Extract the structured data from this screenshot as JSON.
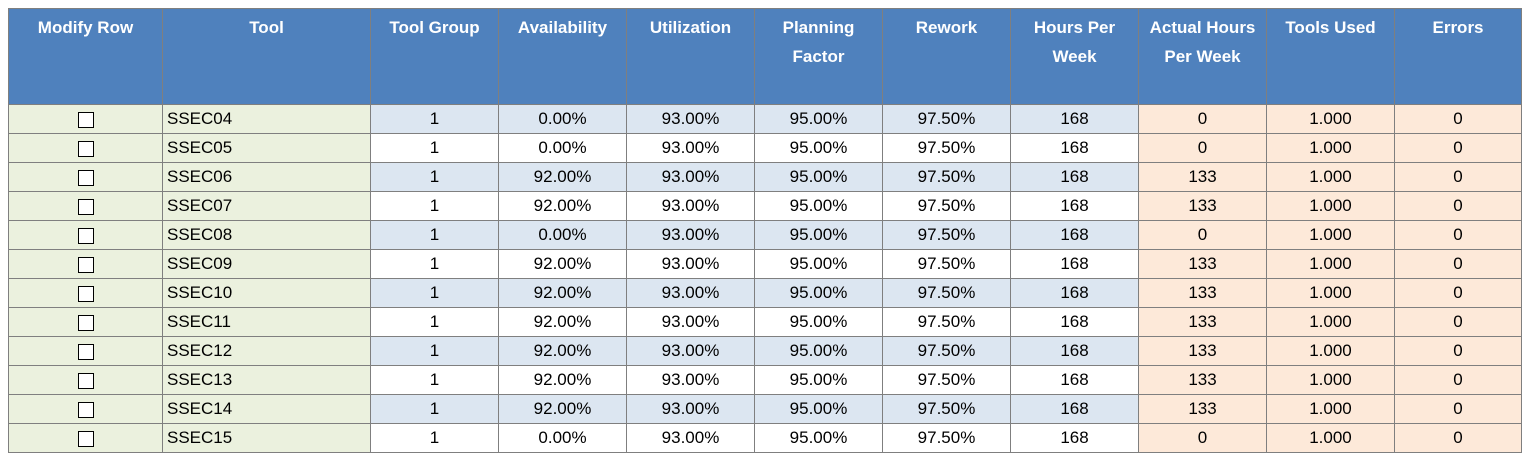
{
  "columns": [
    "Modify Row",
    "Tool",
    "Tool Group",
    "Availability",
    "Utilization",
    "Planning Factor",
    "Rework",
    "Hours Per Week",
    "Actual Hours Per Week",
    "Tools Used",
    "Errors"
  ],
  "rows": [
    {
      "modify": false,
      "tool": "SSEC04",
      "tool_group": "1",
      "availability": "0.00%",
      "utilization": "93.00%",
      "planning_factor": "95.00%",
      "rework": "97.50%",
      "hours_per_week": "168",
      "actual_hours": "0",
      "tools_used": "1.000",
      "errors": "0"
    },
    {
      "modify": false,
      "tool": "SSEC05",
      "tool_group": "1",
      "availability": "0.00%",
      "utilization": "93.00%",
      "planning_factor": "95.00%",
      "rework": "97.50%",
      "hours_per_week": "168",
      "actual_hours": "0",
      "tools_used": "1.000",
      "errors": "0"
    },
    {
      "modify": false,
      "tool": "SSEC06",
      "tool_group": "1",
      "availability": "92.00%",
      "utilization": "93.00%",
      "planning_factor": "95.00%",
      "rework": "97.50%",
      "hours_per_week": "168",
      "actual_hours": "133",
      "tools_used": "1.000",
      "errors": "0"
    },
    {
      "modify": false,
      "tool": "SSEC07",
      "tool_group": "1",
      "availability": "92.00%",
      "utilization": "93.00%",
      "planning_factor": "95.00%",
      "rework": "97.50%",
      "hours_per_week": "168",
      "actual_hours": "133",
      "tools_used": "1.000",
      "errors": "0"
    },
    {
      "modify": false,
      "tool": "SSEC08",
      "tool_group": "1",
      "availability": "0.00%",
      "utilization": "93.00%",
      "planning_factor": "95.00%",
      "rework": "97.50%",
      "hours_per_week": "168",
      "actual_hours": "0",
      "tools_used": "1.000",
      "errors": "0"
    },
    {
      "modify": false,
      "tool": "SSEC09",
      "tool_group": "1",
      "availability": "92.00%",
      "utilization": "93.00%",
      "planning_factor": "95.00%",
      "rework": "97.50%",
      "hours_per_week": "168",
      "actual_hours": "133",
      "tools_used": "1.000",
      "errors": "0"
    },
    {
      "modify": false,
      "tool": "SSEC10",
      "tool_group": "1",
      "availability": "92.00%",
      "utilization": "93.00%",
      "planning_factor": "95.00%",
      "rework": "97.50%",
      "hours_per_week": "168",
      "actual_hours": "133",
      "tools_used": "1.000",
      "errors": "0"
    },
    {
      "modify": false,
      "tool": "SSEC11",
      "tool_group": "1",
      "availability": "92.00%",
      "utilization": "93.00%",
      "planning_factor": "95.00%",
      "rework": "97.50%",
      "hours_per_week": "168",
      "actual_hours": "133",
      "tools_used": "1.000",
      "errors": "0"
    },
    {
      "modify": false,
      "tool": "SSEC12",
      "tool_group": "1",
      "availability": "92.00%",
      "utilization": "93.00%",
      "planning_factor": "95.00%",
      "rework": "97.50%",
      "hours_per_week": "168",
      "actual_hours": "133",
      "tools_used": "1.000",
      "errors": "0"
    },
    {
      "modify": false,
      "tool": "SSEC13",
      "tool_group": "1",
      "availability": "92.00%",
      "utilization": "93.00%",
      "planning_factor": "95.00%",
      "rework": "97.50%",
      "hours_per_week": "168",
      "actual_hours": "133",
      "tools_used": "1.000",
      "errors": "0"
    },
    {
      "modify": false,
      "tool": "SSEC14",
      "tool_group": "1",
      "availability": "92.00%",
      "utilization": "93.00%",
      "planning_factor": "95.00%",
      "rework": "97.50%",
      "hours_per_week": "168",
      "actual_hours": "133",
      "tools_used": "1.000",
      "errors": "0"
    },
    {
      "modify": false,
      "tool": "SSEC15",
      "tool_group": "1",
      "availability": "0.00%",
      "utilization": "93.00%",
      "planning_factor": "95.00%",
      "rework": "97.50%",
      "hours_per_week": "168",
      "actual_hours": "0",
      "tools_used": "1.000",
      "errors": "0"
    }
  ],
  "colors": {
    "header": "#4f81bd",
    "input_cells": "#ebf1de",
    "band_cells": "#dce6f1",
    "output_cells": "#fde9d9"
  }
}
